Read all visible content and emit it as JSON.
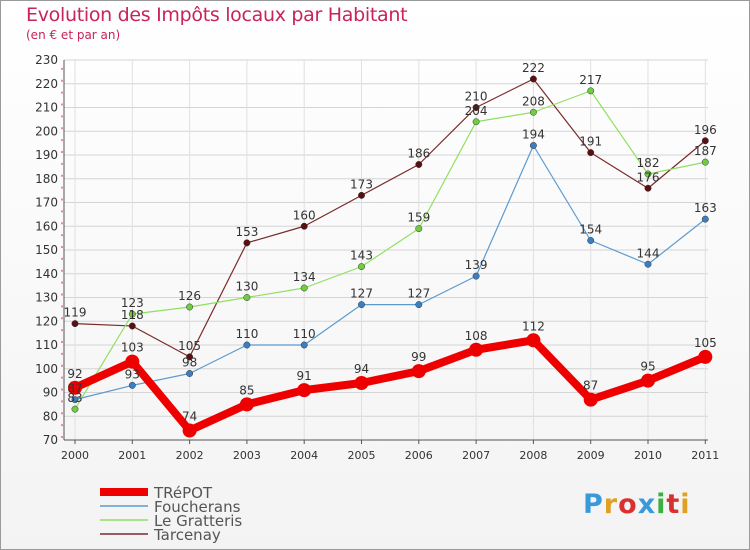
{
  "chart_data": {
    "type": "line",
    "title": "Evolution des Impôts locaux par Habitant",
    "subtitle": "(en € et par an)",
    "x": [
      "2000",
      "2001",
      "2002",
      "2003",
      "2004",
      "2005",
      "2006",
      "2007",
      "2008",
      "2009",
      "2010",
      "2011"
    ],
    "ylim": [
      70,
      230
    ],
    "yticks": [
      70,
      80,
      90,
      100,
      110,
      120,
      130,
      140,
      150,
      160,
      170,
      180,
      190,
      200,
      210,
      220,
      230
    ],
    "grid": true,
    "legend_position": "bottom-left",
    "series": [
      {
        "name": "Tarcenay",
        "color": "#7a2a2a",
        "dot": "#5a1010",
        "width": 1.2,
        "values": [
          119,
          118,
          105,
          153,
          160,
          173,
          186,
          210,
          222,
          191,
          176,
          196
        ]
      },
      {
        "name": "Le Gratteris",
        "color": "#90e060",
        "dot": "#70cc40",
        "width": 1.2,
        "values": [
          83,
          123,
          126,
          130,
          134,
          143,
          159,
          204,
          208,
          217,
          182,
          187
        ]
      },
      {
        "name": "Foucherans",
        "color": "#5c9ad0",
        "dot": "#3a80c0",
        "width": 1.2,
        "values": [
          87,
          93,
          98,
          110,
          110,
          127,
          127,
          139,
          194,
          154,
          144,
          163
        ]
      },
      {
        "name": "TRéPOT",
        "color": "#ee0000",
        "dot": "#ee0000",
        "width": 8,
        "values": [
          92,
          103,
          74,
          85,
          91,
          94,
          99,
          108,
          112,
          87,
          95,
          105
        ]
      }
    ],
    "legend": [
      "TRéPOT",
      "Foucherans",
      "Le Gratteris",
      "Tarcenay"
    ]
  },
  "logo_text": [
    "P",
    "r",
    "o",
    "x",
    "i",
    "t",
    "i"
  ]
}
